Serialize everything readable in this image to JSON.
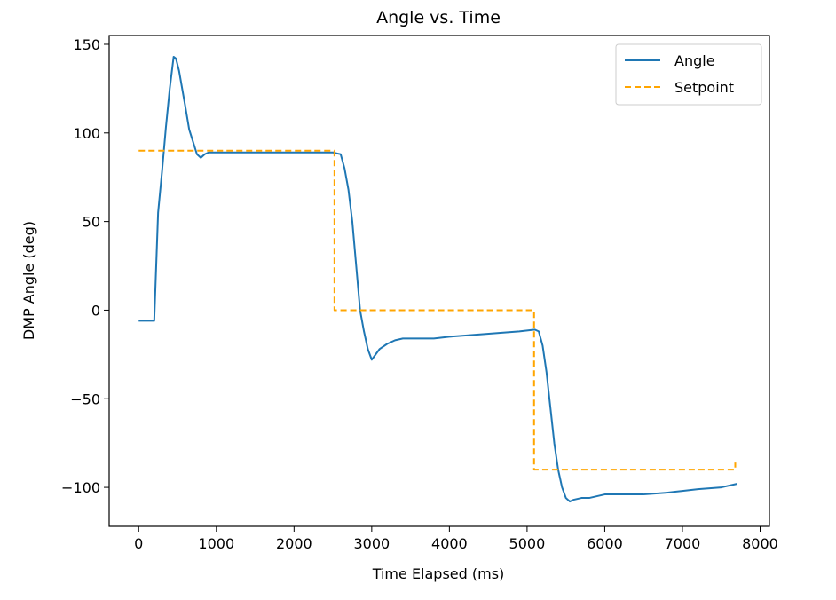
{
  "chart_data": {
    "type": "line",
    "title": "Angle vs. Time",
    "xlabel": "Time Elapsed (ms)",
    "ylabel": "DMP Angle (deg)",
    "xlim": [
      -380,
      8120
    ],
    "ylim": [
      -122,
      155
    ],
    "xticks": [
      0,
      1000,
      2000,
      3000,
      4000,
      5000,
      6000,
      7000,
      8000
    ],
    "xtick_labels": [
      "0",
      "1000",
      "2000",
      "3000",
      "4000",
      "5000",
      "6000",
      "7000",
      "8000"
    ],
    "yticks": [
      -100,
      -50,
      0,
      50,
      100,
      150
    ],
    "ytick_labels": [
      "−100",
      "−50",
      "0",
      "50",
      "100",
      "150"
    ],
    "grid": false,
    "legend_position": "top-right",
    "series": [
      {
        "name": "Angle",
        "color": "#1f77b4",
        "style": "solid",
        "x": [
          0,
          200,
          250,
          300,
          350,
          400,
          450,
          480,
          520,
          560,
          600,
          650,
          700,
          750,
          800,
          850,
          900,
          1000,
          1200,
          1500,
          2000,
          2300,
          2500,
          2600,
          2650,
          2700,
          2750,
          2800,
          2850,
          2900,
          2950,
          3000,
          3050,
          3100,
          3200,
          3300,
          3400,
          3600,
          3800,
          4000,
          4300,
          4600,
          4900,
          5100,
          5150,
          5200,
          5250,
          5300,
          5350,
          5400,
          5450,
          5500,
          5550,
          5600,
          5700,
          5800,
          5900,
          6000,
          6200,
          6500,
          6800,
          7000,
          7200,
          7500,
          7700
        ],
        "values": [
          -6,
          -6,
          55,
          78,
          103,
          125,
          143,
          142,
          135,
          125,
          115,
          102,
          95,
          88,
          86,
          88,
          89,
          89,
          89,
          89,
          89,
          89,
          89,
          88,
          80,
          68,
          50,
          25,
          0,
          -12,
          -22,
          -28,
          -25,
          -22,
          -19,
          -17,
          -16,
          -16,
          -16,
          -15,
          -14,
          -13,
          -12,
          -11,
          -12,
          -20,
          -35,
          -55,
          -75,
          -90,
          -100,
          -106,
          -108,
          -107,
          -106,
          -106,
          -105,
          -104,
          -104,
          -104,
          -103,
          -102,
          -101,
          -100,
          -98
        ]
      },
      {
        "name": "Setpoint",
        "color": "#ffa500",
        "style": "dashed",
        "x": [
          0,
          2520,
          2520,
          5090,
          5090,
          7680,
          7680
        ],
        "values": [
          90,
          90,
          0,
          0,
          -90,
          -90,
          -86
        ]
      }
    ]
  }
}
